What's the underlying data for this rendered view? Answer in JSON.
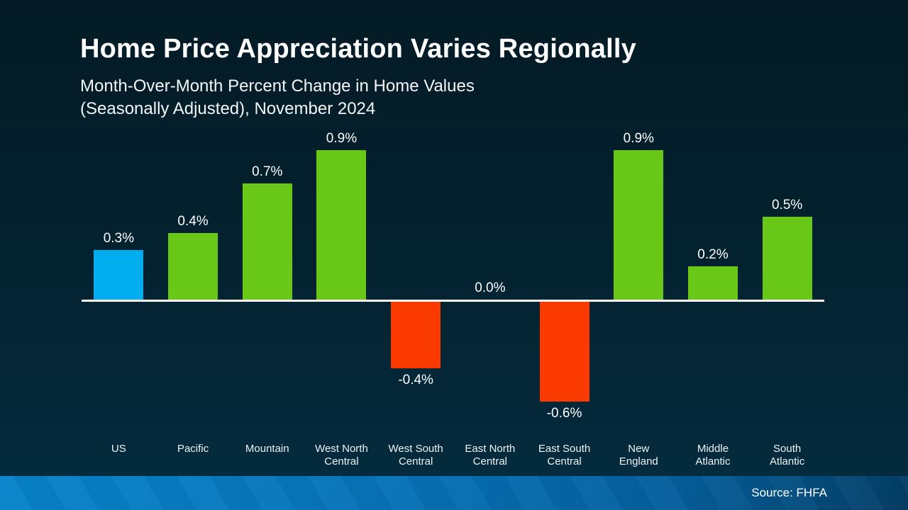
{
  "slide": {
    "title": "Home Price Appreciation Varies Regionally",
    "subtitle_line1": "Month-Over-Month Percent Change in Home Values",
    "subtitle_line2": "(Seasonally Adjusted), November 2024",
    "source": "Source: FHFA"
  },
  "chart_data": {
    "type": "bar",
    "title": "Home Price Appreciation Varies Regionally",
    "subtitle": "Month-Over-Month Percent Change in Home Values (Seasonally Adjusted), November 2024",
    "categories": [
      "US",
      "Pacific",
      "Mountain",
      "West North Central",
      "West South Central",
      "East North Central",
      "East South Central",
      "New England",
      "Middle Atlantic",
      "South Atlantic"
    ],
    "category_lines": [
      [
        "US"
      ],
      [
        "Pacific"
      ],
      [
        "Mountain"
      ],
      [
        "West North",
        "Central"
      ],
      [
        "West South",
        "Central"
      ],
      [
        "East North",
        "Central"
      ],
      [
        "East South",
        "Central"
      ],
      [
        "New",
        "England"
      ],
      [
        "Middle",
        "Atlantic"
      ],
      [
        "South",
        "Atlantic"
      ]
    ],
    "values": [
      0.3,
      0.4,
      0.7,
      0.9,
      -0.4,
      0.0,
      -0.6,
      0.9,
      0.2,
      0.5
    ],
    "value_labels": [
      "0.3%",
      "0.4%",
      "0.7%",
      "0.9%",
      "-0.4%",
      "0.0%",
      "-0.6%",
      "0.9%",
      "0.2%",
      "0.5%"
    ],
    "xlabel": "",
    "ylabel": "",
    "ylim": [
      -0.8,
      1.0
    ],
    "grid": false,
    "legend": null,
    "bar_colors": {
      "us": "#00AEEF",
      "positive": "#68C717",
      "negative": "#FB3A00"
    },
    "axis_color": "#FFFFFF",
    "source": "Source: FHFA"
  },
  "colors": {
    "background_top": "#041B25",
    "background_bottom": "#052E41",
    "footer_left": "#0883CA",
    "footer_right": "#043E66",
    "text": "#FFFFFF"
  }
}
